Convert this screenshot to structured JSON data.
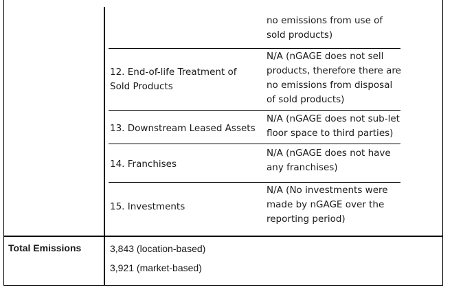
{
  "rows": [
    {
      "category": "",
      "note": "no emissions from use of sold products)"
    },
    {
      "category": "12. End-of-life Treatment of Sold Products",
      "note": "N/A (nGAGE does not sell products, therefore there are no emissions from disposal of sold products)"
    },
    {
      "category": "13. Downstream Leased Assets",
      "note": "N/A (nGAGE does not sub-let floor space to third parties)"
    },
    {
      "category": "14. Franchises",
      "note": "N/A (nGAGE does not have any franchises)"
    },
    {
      "category": "15. Investments",
      "note": "N/A (No investments were made by nGAGE over the reporting period)"
    }
  ],
  "total": {
    "label": "Total Emissions",
    "location_based": "3,843 (location-based)",
    "market_based": "3,921 (market-based)"
  }
}
